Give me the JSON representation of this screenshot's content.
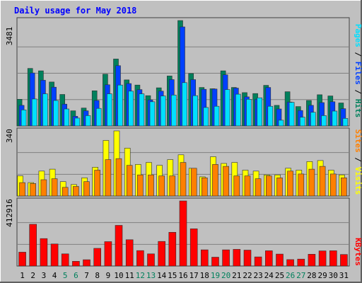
{
  "chart_data": [
    {
      "type": "bar",
      "title": "Daily usage for May 2018",
      "categories": [
        "1",
        "2",
        "3",
        "4",
        "5",
        "6",
        "7",
        "8",
        "9",
        "10",
        "11",
        "12",
        "13",
        "14",
        "15",
        "16",
        "17",
        "18",
        "19",
        "20",
        "21",
        "22",
        "23",
        "24",
        "25",
        "26",
        "27",
        "28",
        "29",
        "30",
        "31"
      ],
      "weekend_days": [
        "5",
        "6",
        "12",
        "13",
        "19",
        "20",
        "26",
        "27"
      ],
      "ymax_label": "3481",
      "ylim": [
        0,
        3481
      ],
      "right_label_parts": [
        "Pages",
        " / ",
        "Files",
        " / ",
        "Hits"
      ],
      "series": [
        {
          "name": "Hits",
          "color": "#00805c",
          "values": [
            880,
            1900,
            1820,
            1450,
            1040,
            500,
            590,
            1160,
            1710,
            2210,
            1520,
            1350,
            1000,
            1260,
            1650,
            3481,
            1730,
            1270,
            1230,
            1820,
            1270,
            1100,
            1070,
            1340,
            680,
            1130,
            640,
            840,
            1030,
            990,
            760
          ]
        },
        {
          "name": "Files",
          "color": "#0040ff",
          "values": [
            680,
            1750,
            1510,
            1280,
            720,
            320,
            500,
            840,
            1360,
            1990,
            1400,
            1200,
            860,
            1150,
            1530,
            3270,
            1530,
            1210,
            1220,
            1690,
            1250,
            960,
            880,
            1270,
            560,
            790,
            510,
            680,
            770,
            800,
            570
          ]
        },
        {
          "name": "Pages",
          "color": "#00e0ff",
          "values": [
            530,
            890,
            1060,
            840,
            560,
            260,
            340,
            580,
            1060,
            1350,
            1150,
            1060,
            800,
            990,
            1020,
            1430,
            1000,
            610,
            650,
            1200,
            1050,
            880,
            930,
            650,
            190,
            780,
            290,
            450,
            340,
            490,
            250
          ]
        }
      ]
    },
    {
      "type": "bar",
      "ymax_label": "340",
      "ylim": [
        0,
        340
      ],
      "right_label_parts": [
        "Sites",
        " / ",
        "Visits"
      ],
      "series": [
        {
          "name": "Visits",
          "color": "#ffff00",
          "values": [
            105,
            70,
            130,
            140,
            75,
            60,
            95,
            150,
            290,
            340,
            250,
            165,
            175,
            160,
            190,
            215,
            145,
            100,
            205,
            170,
            175,
            135,
            130,
            110,
            110,
            145,
            135,
            180,
            185,
            135,
            110
          ]
        },
        {
          "name": "Sites",
          "color": "#ff8000",
          "values": [
            70,
            65,
            85,
            90,
            45,
            50,
            75,
            135,
            190,
            195,
            160,
            110,
            110,
            105,
            105,
            175,
            145,
            95,
            165,
            155,
            105,
            105,
            90,
            105,
            95,
            130,
            115,
            140,
            155,
            115,
            95
          ]
        }
      ]
    },
    {
      "type": "bar",
      "ymax_label": "412916",
      "ylim": [
        0,
        412916
      ],
      "right_label_parts": [
        "KBytes"
      ],
      "series": [
        {
          "name": "KBytes",
          "color": "#ff0000",
          "values": [
            88000,
            265000,
            174000,
            140000,
            77000,
            30000,
            40000,
            112000,
            155000,
            258000,
            167000,
            98000,
            77000,
            156000,
            214000,
            412916,
            236000,
            103000,
            56000,
            103000,
            106000,
            101000,
            58000,
            97000,
            76000,
            41000,
            44000,
            75000,
            96000,
            97000,
            73000
          ]
        }
      ]
    }
  ],
  "colors": {
    "background": "#c0c0c0",
    "title": "#0000ff",
    "pages": "#00e0ff",
    "files": "#0040ff",
    "hits": "#00805c",
    "visits": "#ffff00",
    "sites": "#ff8000",
    "kbytes": "#ff0000",
    "weekend_label": "#00805c"
  }
}
